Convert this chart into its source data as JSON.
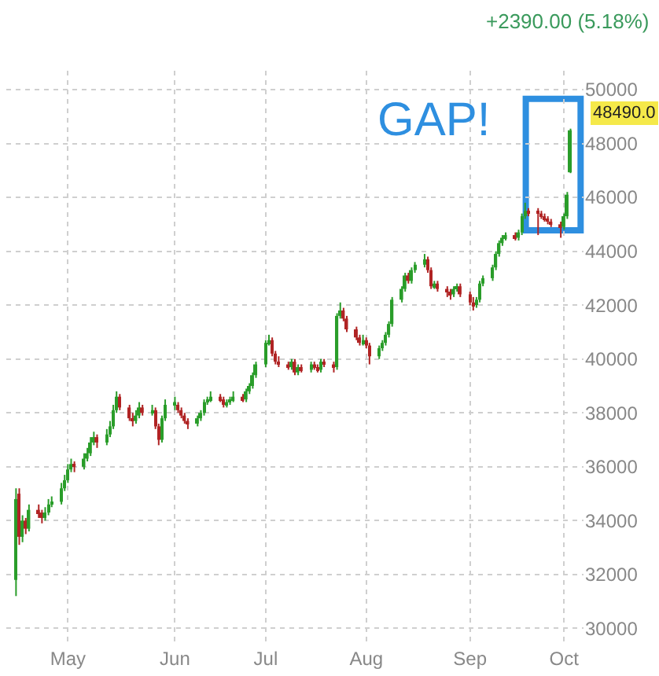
{
  "chart_data": {
    "type": "candlestick",
    "x": [
      "--04-15",
      "--04-16",
      "--04-17",
      "--04-18",
      "--04-19",
      "--04-22",
      "--04-23",
      "--04-24",
      "--04-25",
      "--04-26",
      "--04-29",
      "--04-30",
      "--05-01",
      "--05-02",
      "--05-03",
      "--05-06",
      "--05-07",
      "--05-08",
      "--05-09",
      "--05-10",
      "--05-13",
      "--05-14",
      "--05-15",
      "--05-16",
      "--05-17",
      "--05-20",
      "--05-21",
      "--05-22",
      "--05-23",
      "--05-24",
      "--05-27",
      "--05-28",
      "--05-29",
      "--05-30",
      "--05-31",
      "--06-03",
      "--06-04",
      "--06-05",
      "--06-06",
      "--06-07",
      "--06-10",
      "--06-11",
      "--06-12",
      "--06-13",
      "--06-14",
      "--06-17",
      "--06-18",
      "--06-19",
      "--06-20",
      "--06-21",
      "--06-24",
      "--06-25",
      "--06-26",
      "--06-27",
      "--06-28",
      "--07-01",
      "--07-02",
      "--07-03",
      "--07-04",
      "--07-05",
      "--07-08",
      "--07-09",
      "--07-10",
      "--07-11",
      "--07-12",
      "--07-15",
      "--07-16",
      "--07-17",
      "--07-18",
      "--07-19",
      "--07-22",
      "--07-23",
      "--07-24",
      "--07-25",
      "--07-26",
      "--07-29",
      "--07-30",
      "--07-31",
      "--08-01",
      "--08-02",
      "--08-05",
      "--08-06",
      "--08-07",
      "--08-08",
      "--08-09",
      "--08-12",
      "--08-13",
      "--08-14",
      "--08-15",
      "--08-16",
      "--08-19",
      "--08-20",
      "--08-21",
      "--08-22",
      "--08-23",
      "--08-26",
      "--08-27",
      "--08-28",
      "--08-29",
      "--08-30",
      "--09-02",
      "--09-03",
      "--09-04",
      "--09-05",
      "--09-06",
      "--09-09",
      "--09-10",
      "--09-11",
      "--09-12",
      "--09-13",
      "--09-16",
      "--09-17",
      "--09-18",
      "--09-19",
      "--09-20",
      "--09-23",
      "--09-24",
      "--09-25",
      "--09-26",
      "--09-27",
      "--09-30",
      "--10-01",
      "--10-02",
      "--10-03"
    ],
    "ohlc": [
      [
        31800,
        35200,
        31200,
        34800
      ],
      [
        35000,
        35200,
        33100,
        33400
      ],
      [
        33400,
        34200,
        33200,
        34000
      ],
      [
        34000,
        34100,
        33500,
        33700
      ],
      [
        33700,
        34600,
        33600,
        34400
      ],
      [
        34400,
        34600,
        34100,
        34300
      ],
      [
        34300,
        34400,
        33900,
        34100
      ],
      [
        34100,
        34500,
        34000,
        34300
      ],
      [
        34300,
        34800,
        34200,
        34600
      ],
      [
        34600,
        34900,
        34500,
        34700
      ],
      [
        34700,
        35400,
        34600,
        35200
      ],
      [
        35200,
        35700,
        35100,
        35500
      ],
      [
        35500,
        36100,
        35400,
        35900
      ],
      [
        35900,
        36300,
        35800,
        36100
      ],
      [
        36100,
        36200,
        35800,
        36000
      ],
      [
        36000,
        36500,
        35900,
        36300
      ],
      [
        36300,
        36700,
        36200,
        36500
      ],
      [
        36500,
        37100,
        36400,
        36900
      ],
      [
        36900,
        37300,
        36800,
        37100
      ],
      [
        37100,
        37200,
        36700,
        36900
      ],
      [
        36900,
        37400,
        36800,
        37200
      ],
      [
        37200,
        37700,
        37100,
        37500
      ],
      [
        37500,
        38300,
        37400,
        38100
      ],
      [
        38100,
        38800,
        38000,
        38600
      ],
      [
        38600,
        38700,
        38100,
        38200
      ],
      [
        38200,
        38300,
        37700,
        37800
      ],
      [
        37800,
        38000,
        37500,
        37700
      ],
      [
        37700,
        38100,
        37600,
        37900
      ],
      [
        37900,
        38400,
        37800,
        38200
      ],
      [
        38200,
        38300,
        37900,
        38000
      ],
      [
        38000,
        38300,
        37900,
        38100
      ],
      [
        38100,
        38200,
        37400,
        37500
      ],
      [
        37500,
        37600,
        36800,
        37000
      ],
      [
        37000,
        37900,
        36900,
        37800
      ],
      [
        37800,
        38500,
        37700,
        38300
      ],
      [
        38300,
        38600,
        38100,
        38400
      ],
      [
        38300,
        38400,
        38000,
        38100
      ],
      [
        38100,
        38200,
        37800,
        37900
      ],
      [
        37900,
        38000,
        37600,
        37700
      ],
      [
        37700,
        37800,
        37400,
        37600
      ],
      [
        37600,
        37900,
        37500,
        37800
      ],
      [
        37800,
        38100,
        37700,
        38000
      ],
      [
        38000,
        38500,
        37900,
        38400
      ],
      [
        38400,
        38600,
        38300,
        38500
      ],
      [
        38500,
        38800,
        38400,
        38600
      ],
      [
        38600,
        38700,
        38400,
        38500
      ],
      [
        38500,
        38600,
        38200,
        38300
      ],
      [
        38300,
        38500,
        38200,
        38400
      ],
      [
        38400,
        38600,
        38300,
        38500
      ],
      [
        38500,
        38800,
        38400,
        38600
      ],
      [
        38600,
        38700,
        38400,
        38500
      ],
      [
        38500,
        38900,
        38400,
        38800
      ],
      [
        38800,
        39100,
        38700,
        39000
      ],
      [
        39000,
        39500,
        38900,
        39400
      ],
      [
        39400,
        39900,
        39300,
        39800
      ],
      [
        39800,
        40700,
        39700,
        40600
      ],
      [
        40600,
        40900,
        40500,
        40700
      ],
      [
        40700,
        40800,
        40100,
        40200
      ],
      [
        40200,
        40300,
        39800,
        39900
      ],
      [
        39900,
        40100,
        39700,
        39800
      ],
      [
        39800,
        39900,
        39600,
        39700
      ],
      [
        39700,
        40000,
        39600,
        39900
      ],
      [
        39900,
        40000,
        39400,
        39500
      ],
      [
        39500,
        39800,
        39400,
        39700
      ],
      [
        39700,
        39800,
        39500,
        39600
      ],
      [
        39600,
        39900,
        39500,
        39800
      ],
      [
        39800,
        39900,
        39600,
        39700
      ],
      [
        39700,
        39800,
        39500,
        39600
      ],
      [
        39600,
        40000,
        39500,
        39900
      ],
      [
        39900,
        40000,
        39700,
        39800
      ],
      [
        39800,
        39900,
        39500,
        39700
      ],
      [
        39700,
        41700,
        39600,
        41600
      ],
      [
        41600,
        42100,
        41500,
        41800
      ],
      [
        41800,
        41900,
        41400,
        41500
      ],
      [
        41500,
        41600,
        41000,
        41100
      ],
      [
        41100,
        41200,
        40700,
        40800
      ],
      [
        40800,
        40900,
        40500,
        40600
      ],
      [
        40600,
        40900,
        40500,
        40700
      ],
      [
        40700,
        40800,
        40400,
        40500
      ],
      [
        40500,
        40600,
        39800,
        40100
      ],
      [
        40100,
        40500,
        40000,
        40400
      ],
      [
        40400,
        40700,
        40300,
        40600
      ],
      [
        40600,
        41000,
        40500,
        40900
      ],
      [
        40900,
        41400,
        40800,
        41300
      ],
      [
        41300,
        42300,
        41200,
        42200
      ],
      [
        42200,
        42700,
        42100,
        42600
      ],
      [
        42600,
        43200,
        42500,
        43100
      ],
      [
        43100,
        43200,
        42800,
        42900
      ],
      [
        42900,
        43400,
        42800,
        43300
      ],
      [
        43300,
        43600,
        43200,
        43500
      ],
      [
        43500,
        43900,
        43400,
        43700
      ],
      [
        43700,
        43800,
        43200,
        43300
      ],
      [
        43300,
        43400,
        42600,
        42700
      ],
      [
        42700,
        42900,
        42600,
        42800
      ],
      [
        42800,
        42900,
        42500,
        42600
      ],
      [
        42600,
        42700,
        42300,
        42500
      ],
      [
        42500,
        42600,
        42200,
        42400
      ],
      [
        42400,
        42700,
        42300,
        42600
      ],
      [
        42600,
        42800,
        42500,
        42700
      ],
      [
        42700,
        42800,
        42300,
        42400
      ],
      [
        42400,
        42500,
        42000,
        42100
      ],
      [
        42100,
        42300,
        41800,
        42000
      ],
      [
        42000,
        42300,
        41900,
        42200
      ],
      [
        42200,
        42900,
        42100,
        42800
      ],
      [
        42800,
        43100,
        42700,
        43000
      ],
      [
        43000,
        43500,
        42900,
        43400
      ],
      [
        43400,
        44000,
        43300,
        43900
      ],
      [
        43900,
        44400,
        43800,
        44300
      ],
      [
        44300,
        44600,
        44200,
        44500
      ],
      [
        44500,
        44700,
        44400,
        44600
      ],
      [
        44600,
        44700,
        44400,
        44500
      ],
      [
        44500,
        44800,
        44400,
        44700
      ],
      [
        44700,
        45400,
        44600,
        45300
      ],
      [
        45300,
        45800,
        45200,
        45500
      ],
      [
        45500,
        45600,
        45300,
        45400
      ],
      [
        45500,
        45600,
        44600,
        45400
      ],
      [
        45400,
        45500,
        45200,
        45300
      ],
      [
        45300,
        45400,
        45100,
        45200
      ],
      [
        45200,
        45300,
        45000,
        45100
      ],
      [
        45100,
        45200,
        44900,
        45000
      ],
      [
        45000,
        45100,
        44500,
        44900
      ],
      [
        44900,
        45400,
        44800,
        45300
      ],
      [
        45300,
        46200,
        45200,
        46100
      ],
      [
        46930,
        48550,
        46900,
        48490
      ]
    ],
    "xlim": [
      "--04-12",
      "--10-07"
    ],
    "xticks": [
      {
        "value": "--05-01",
        "label": "May"
      },
      {
        "value": "--06-03",
        "label": "Jun"
      },
      {
        "value": "--07-01",
        "label": "Jul"
      },
      {
        "value": "--08-01",
        "label": "Aug"
      },
      {
        "value": "--09-02",
        "label": "Sep"
      },
      {
        "value": "--10-01",
        "label": "Oct"
      }
    ],
    "ylim": [
      29400,
      50700
    ],
    "yticks": [
      30000,
      32000,
      34000,
      36000,
      38000,
      40000,
      42000,
      44000,
      46000,
      48000,
      50000
    ],
    "grid": true,
    "annotations": [
      "+2390.00 (5.18%)",
      "GAP!",
      "48490.0"
    ]
  }
}
